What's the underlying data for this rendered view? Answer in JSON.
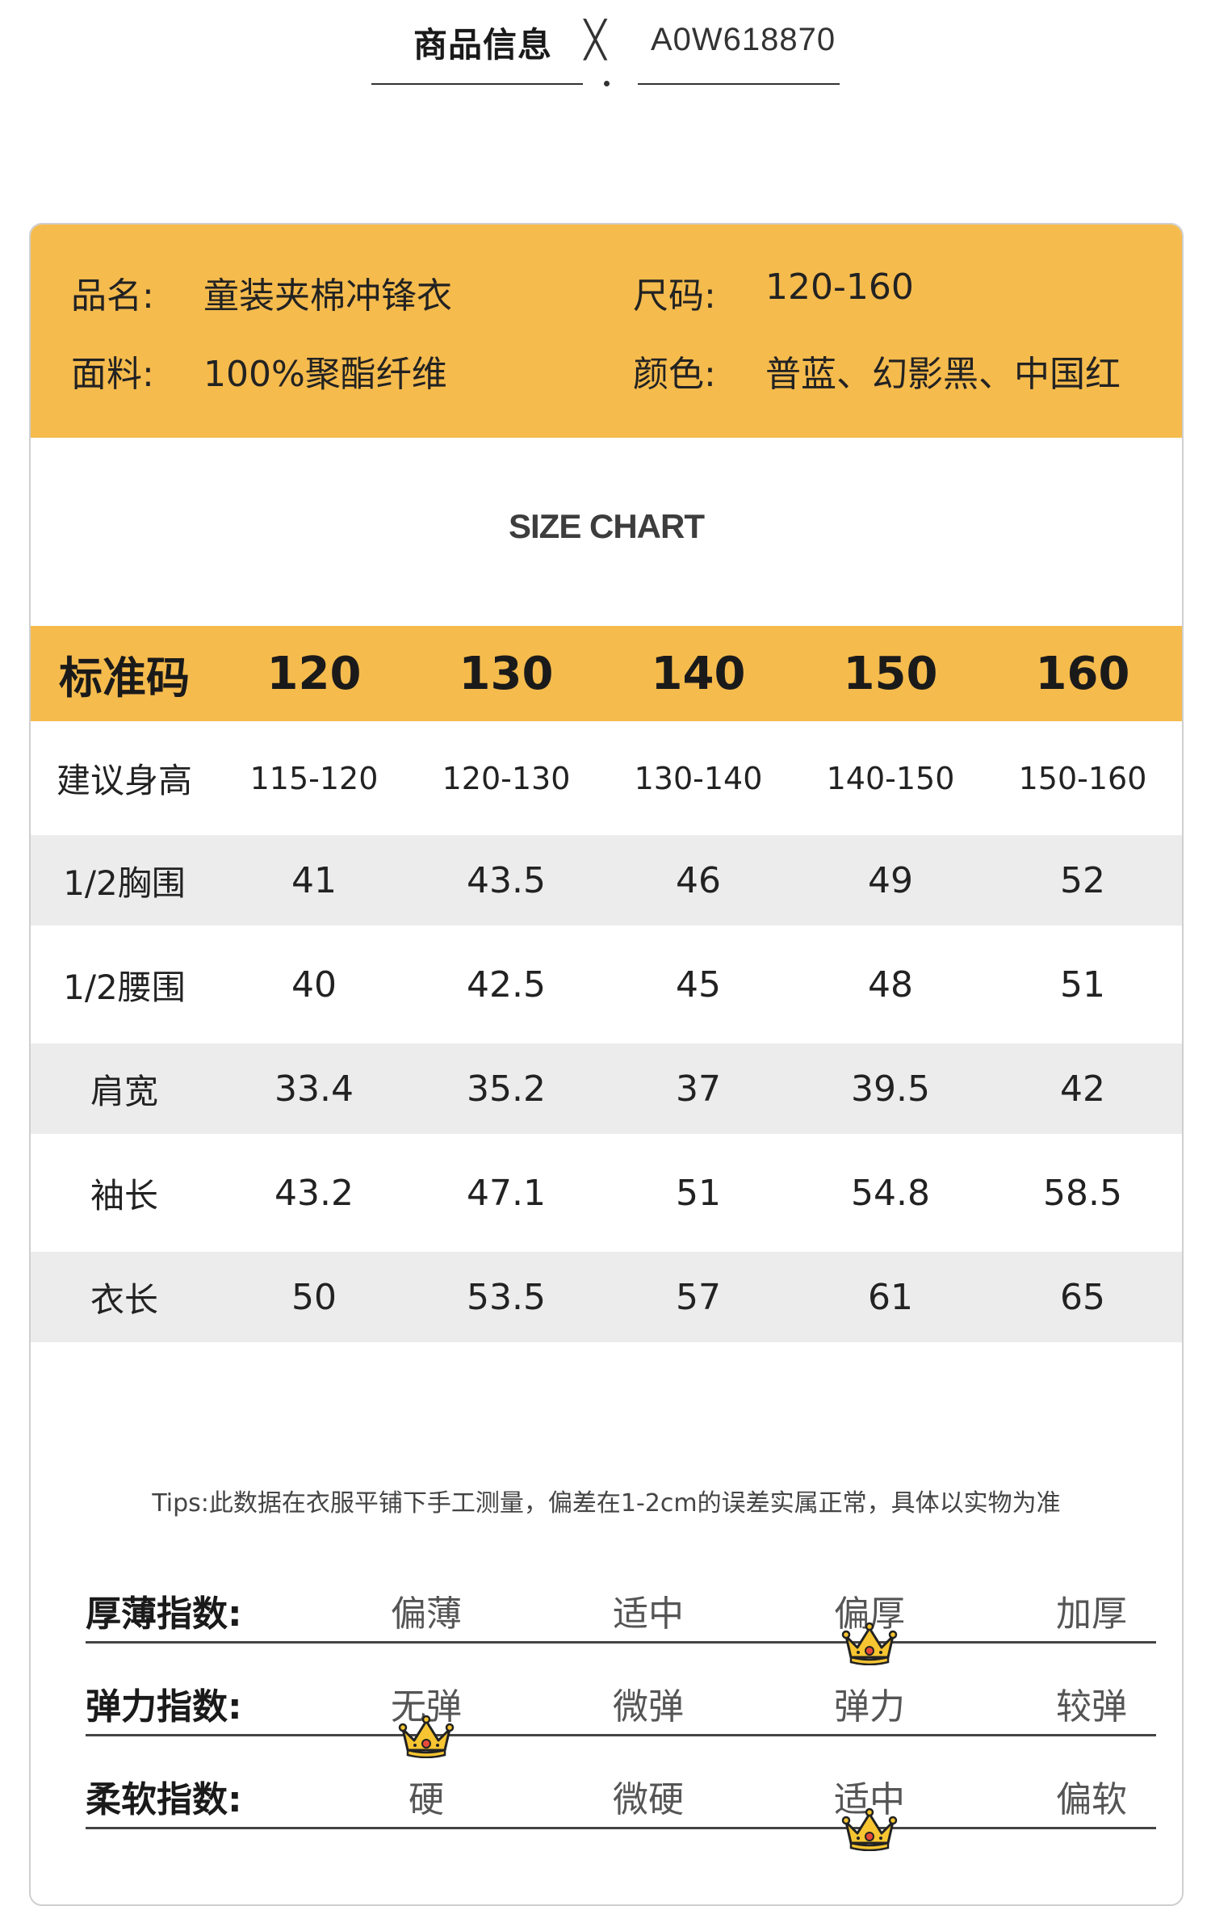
{
  "header": {
    "title": "商品信息",
    "separator": "╳",
    "code": "A0W618870"
  },
  "info": {
    "name_label": "品名:",
    "name_value": "童装夹棉冲锋衣",
    "size_label": "尺码:",
    "size_value": "120-160",
    "fabric_label": "面料:",
    "fabric_value": "100%聚酯纤维",
    "color_label": "颜色:",
    "color_value": "普蓝、幻影黑、中国红"
  },
  "size_chart_title": "SIZE CHART",
  "table": {
    "header": [
      "标准码",
      "120",
      "130",
      "140",
      "150",
      "160"
    ],
    "rows": [
      [
        "建议身高",
        "115-120",
        "120-130",
        "130-140",
        "140-150",
        "150-160"
      ],
      [
        "1/2胸围",
        "41",
        "43.5",
        "46",
        "49",
        "52"
      ],
      [
        "1/2腰围",
        "40",
        "42.5",
        "45",
        "48",
        "51"
      ],
      [
        "肩宽",
        "33.4",
        "35.2",
        "37",
        "39.5",
        "42"
      ],
      [
        "袖长",
        "43.2",
        "47.1",
        "51",
        "54.8",
        "58.5"
      ],
      [
        "衣长",
        "50",
        "53.5",
        "57",
        "61",
        "65"
      ]
    ]
  },
  "tips": "Tips:此数据在衣服平铺下手工测量，偏差在1-2cm的误差实属正常，具体以实物为准",
  "indices": [
    {
      "label": "厚薄指数:",
      "options": [
        "偏薄",
        "适中",
        "偏厚",
        "加厚"
      ],
      "selected": "偏厚"
    },
    {
      "label": "弹力指数:",
      "options": [
        "无弹",
        "微弹",
        "弹力",
        "较弹"
      ],
      "selected": "无弹"
    },
    {
      "label": "柔软指数:",
      "options": [
        "硬",
        "微硬",
        "适中",
        "偏软"
      ],
      "selected": "适中"
    }
  ],
  "colors": {
    "accent": "#f5bb4d",
    "row_alt": "#ececec"
  }
}
